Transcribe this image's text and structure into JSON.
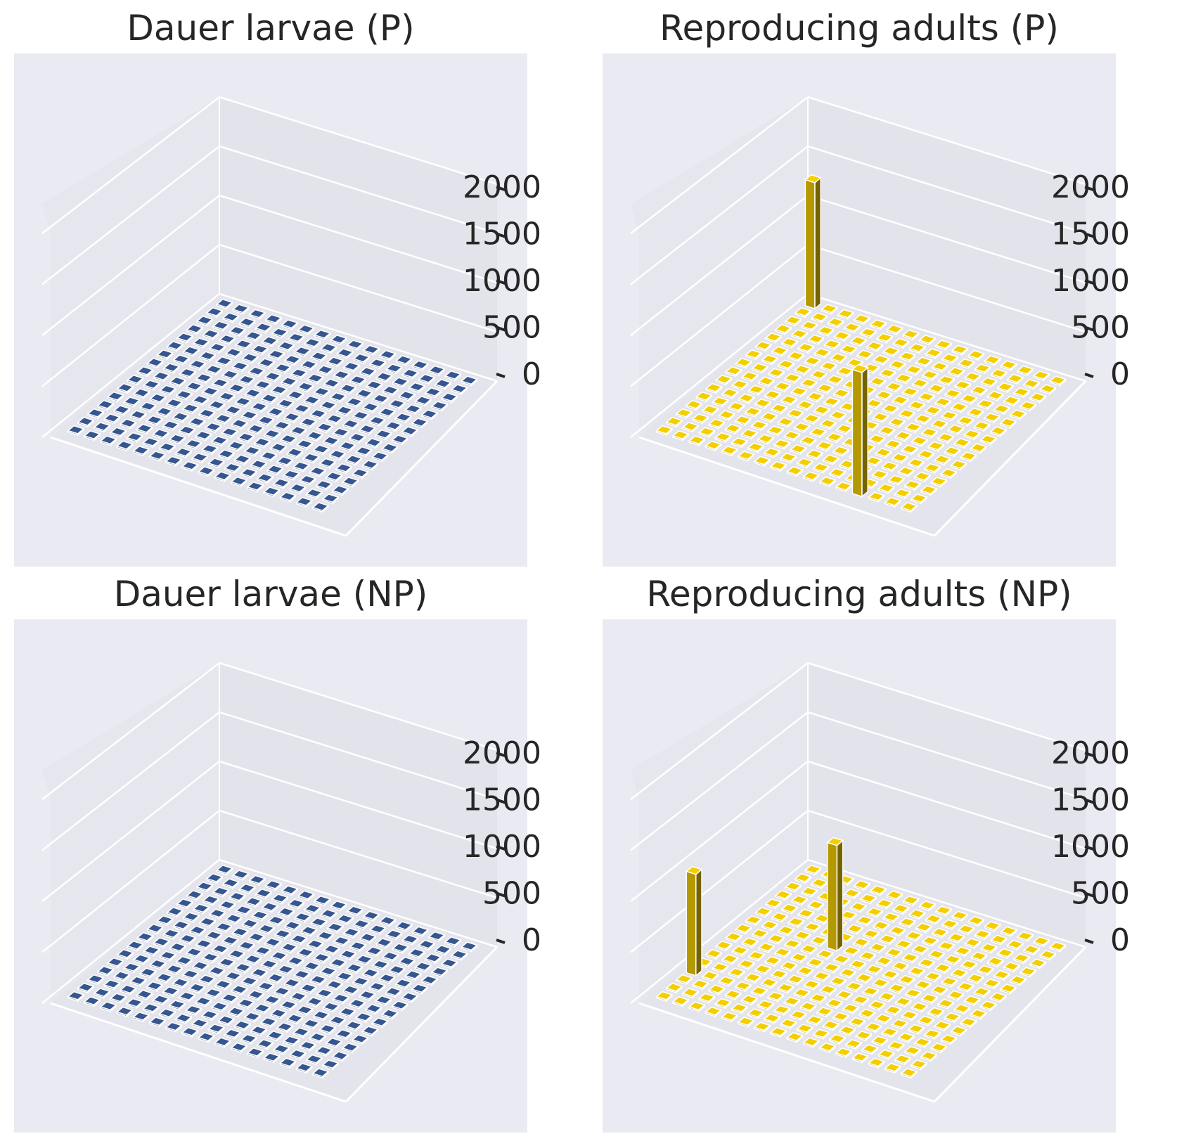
{
  "figure": {
    "background": "#ffffff",
    "pane_color": "#eaeaf2",
    "wall_color": "#e6e6ee",
    "grid_color": "#ffffff",
    "text_color": "#262626"
  },
  "chart_data": [
    {
      "type": "bar3d",
      "title": "Dauer larvae (P)",
      "zlim": [
        0,
        2000
      ],
      "z_ticks": [
        "0",
        "500",
        "1000",
        "1500",
        "2000"
      ],
      "grid": true,
      "grid_size": [
        16,
        16
      ],
      "base_value": 0,
      "bar_color": "#2f4b7c",
      "tall_bars": []
    },
    {
      "type": "bar3d",
      "title": "Reproducing adults (P)",
      "zlim": [
        0,
        2000
      ],
      "z_ticks": [
        "0",
        "500",
        "1000",
        "1500",
        "2000"
      ],
      "grid": true,
      "grid_size": [
        16,
        16
      ],
      "base_value": 0,
      "bar_color": "#d4b400",
      "tall_bars": [
        {
          "row": 0,
          "col": 0,
          "value": 1280
        },
        {
          "row": 15,
          "col": 12,
          "value": 1260
        }
      ]
    },
    {
      "type": "bar3d",
      "title": "Dauer larvae (NP)",
      "zlim": [
        0,
        2000
      ],
      "z_ticks": [
        "0",
        "500",
        "1000",
        "1500",
        "2000"
      ],
      "grid": true,
      "grid_size": [
        16,
        16
      ],
      "base_value": 0,
      "bar_color": "#2f4b7c",
      "tall_bars": []
    },
    {
      "type": "bar3d",
      "title": "Reproducing adults (NP)",
      "zlim": [
        0,
        2000
      ],
      "z_ticks": [
        "0",
        "500",
        "1000",
        "1500",
        "2000"
      ],
      "grid": true,
      "grid_size": [
        16,
        16
      ],
      "base_value": 0,
      "bar_color": "#d4b400",
      "tall_bars": [
        {
          "row": 12,
          "col": 0,
          "value": 1030
        },
        {
          "row": 6,
          "col": 5,
          "value": 1070
        }
      ]
    }
  ]
}
